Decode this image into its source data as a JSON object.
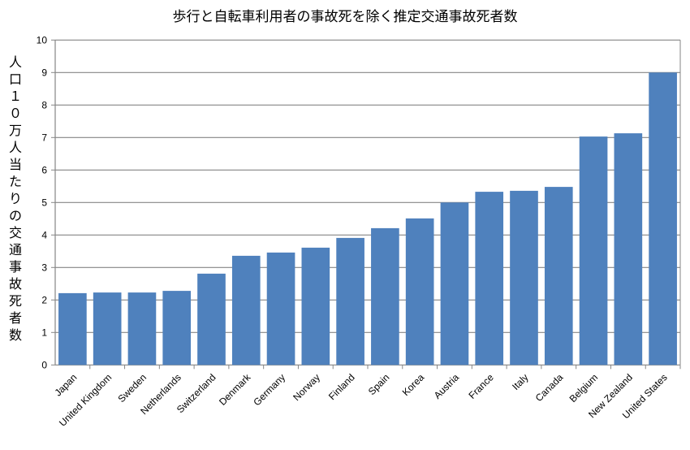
{
  "chart_data": {
    "type": "bar",
    "title": "歩行と自転車利用者の事故死を除く推定交通事故死者数",
    "xlabel": "",
    "ylabel": "人口１０万人当たりの交通事故死者数",
    "ylim": [
      0,
      10
    ],
    "yticks": [
      "0",
      "1",
      "2",
      "3",
      "4",
      "5",
      "6",
      "7",
      "8",
      "9",
      "10"
    ],
    "grid": true,
    "legend": "none",
    "color": "#4F81BD",
    "categories": [
      "Japan",
      "United Kingdom",
      "Sweden",
      "Netherlands",
      "Switzerland",
      "Denmark",
      "Germany",
      "Norway",
      "Finland",
      "Spain",
      "Korea",
      "Austria",
      "France",
      "Italy",
      "Canada",
      "Belgium",
      "New Zealand",
      "United States"
    ],
    "values": [
      2.21,
      2.23,
      2.23,
      2.28,
      2.81,
      3.36,
      3.46,
      3.61,
      3.91,
      4.21,
      4.51,
      5.0,
      5.33,
      5.36,
      5.48,
      7.03,
      7.13,
      9.0
    ]
  }
}
